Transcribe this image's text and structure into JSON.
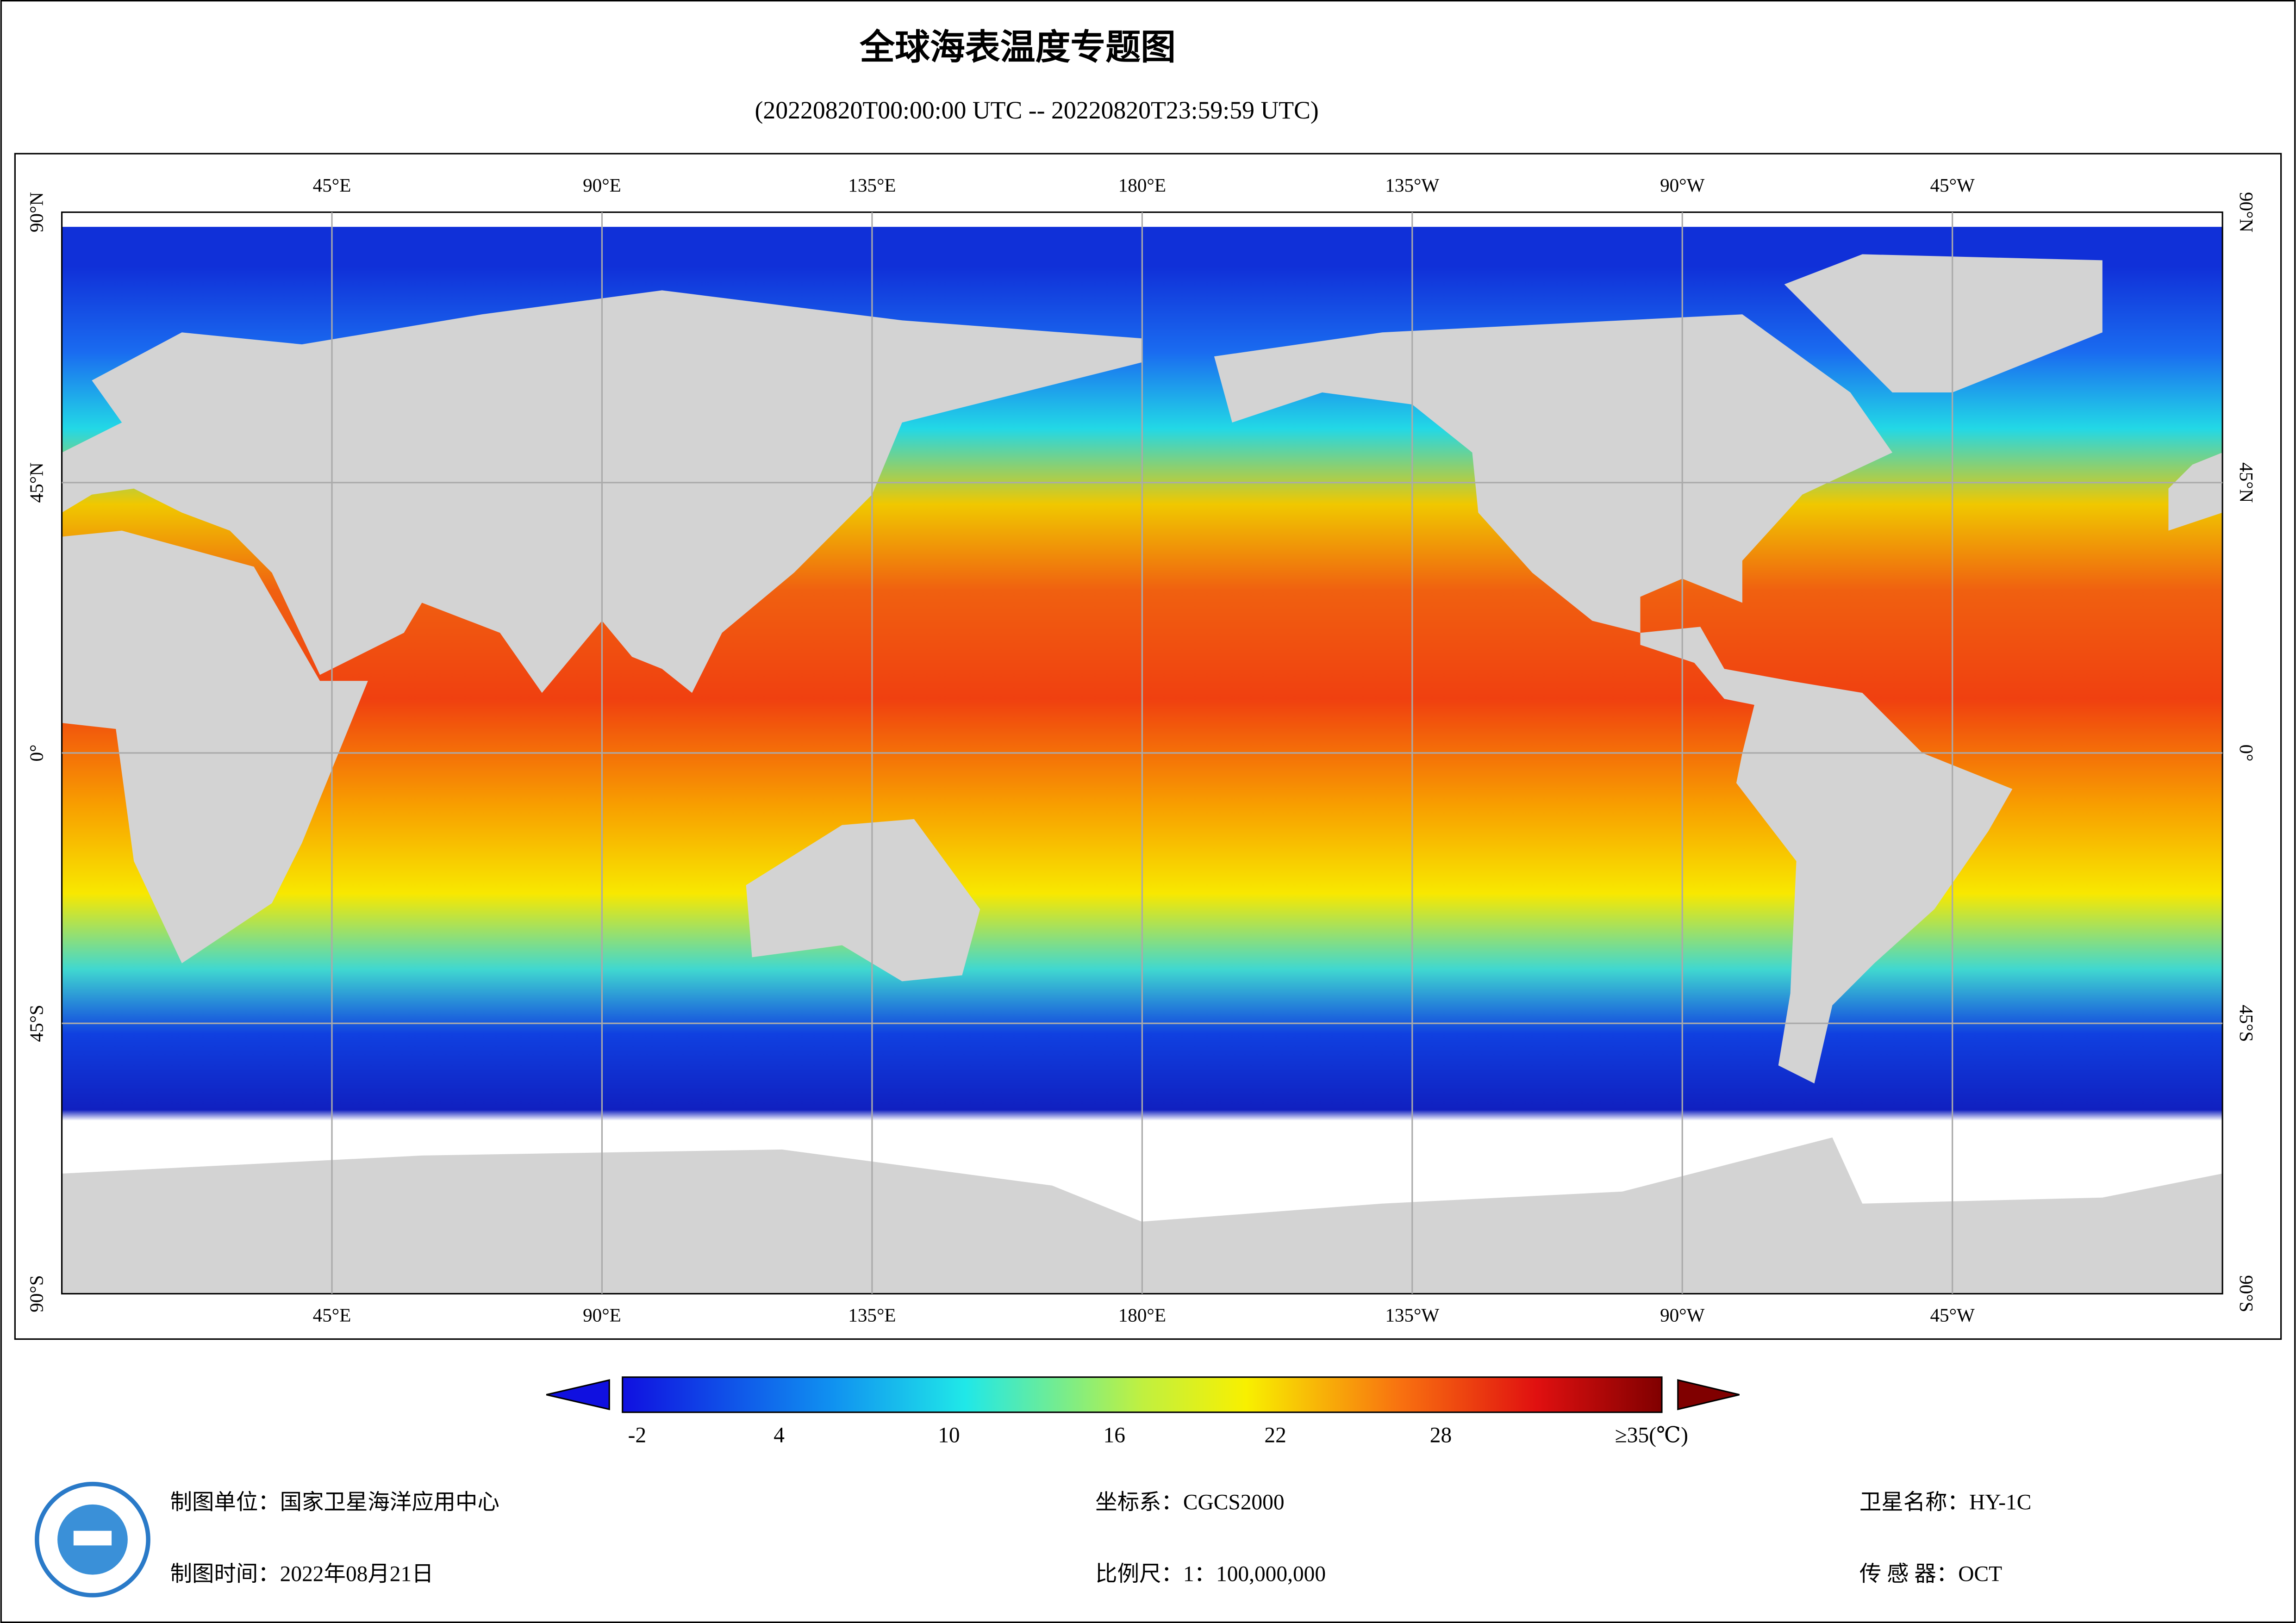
{
  "header": {
    "title": "全球海表温度专题图",
    "subtitle": "(20220820T00:00:00 UTC -- 20220820T23:59:59 UTC)"
  },
  "map": {
    "lon_labels": [
      "45°E",
      "90°E",
      "135°E",
      "180°E",
      "135°W",
      "90°W",
      "45°W"
    ],
    "lat_labels": [
      "90°N",
      "45°N",
      "0°",
      "45°S",
      "90°S"
    ]
  },
  "colorbar": {
    "labels": [
      "-2",
      "4",
      "10",
      "16",
      "22",
      "28",
      "≥35(℃)"
    ]
  },
  "footer": {
    "organization": "制图单位：国家卫星海洋应用中心",
    "date": "制图时间：2022年08月21日",
    "crs": "坐标系：CGCS2000",
    "scale": "比例尺：1：100,000,000",
    "satellite": "卫星名称：HY-1C",
    "sensor": "传 感 器：OCT"
  }
}
